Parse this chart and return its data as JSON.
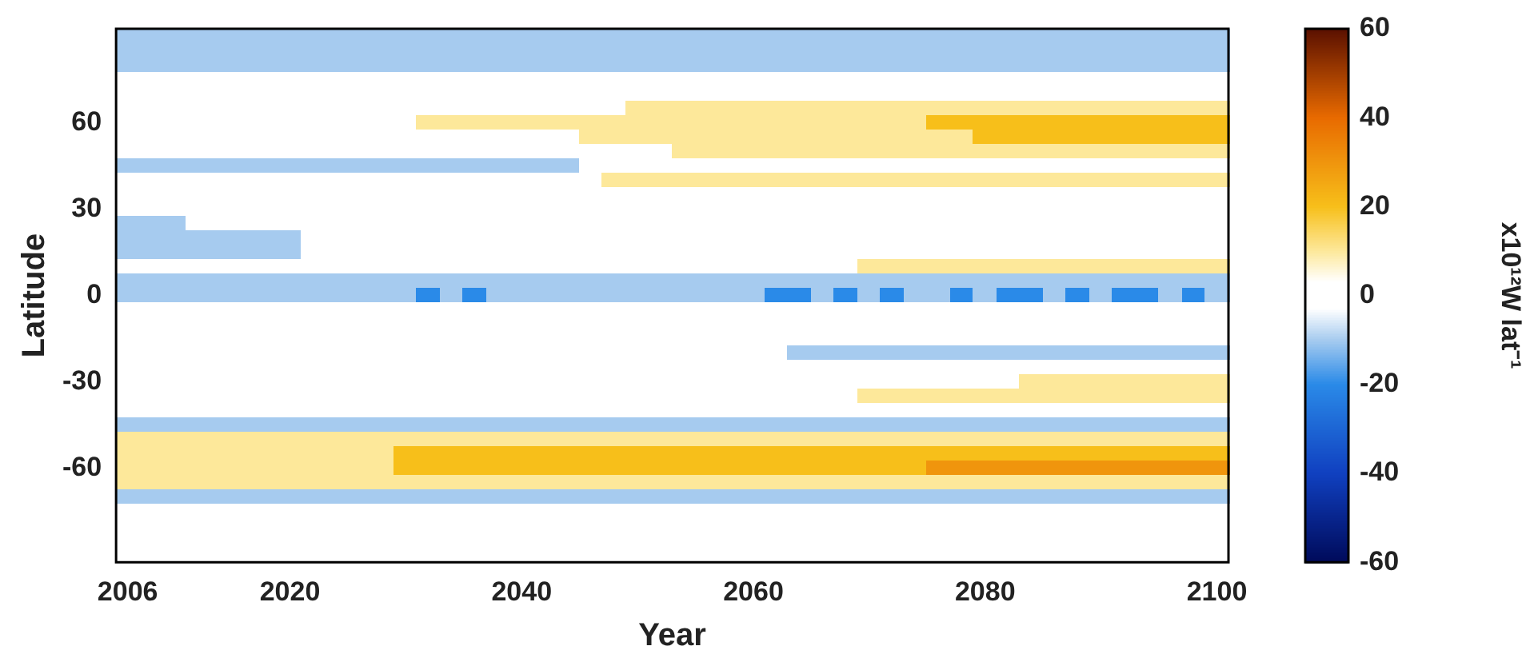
{
  "chart_data": {
    "type": "heatmap",
    "xlabel": "Year",
    "ylabel": "Latitude",
    "clabel": "x10¹²W lat⁻¹",
    "categories": [
      "2006",
      null,
      null,
      null,
      null,
      null,
      null,
      "2020",
      null,
      null,
      null,
      null,
      null,
      null,
      null,
      null,
      null,
      "2040",
      null,
      null,
      null,
      null,
      null,
      null,
      null,
      null,
      null,
      "2060",
      null,
      null,
      null,
      null,
      null,
      null,
      null,
      null,
      null,
      "2080",
      null,
      null,
      null,
      null,
      null,
      null,
      null,
      null,
      null,
      "2100"
    ],
    "y_categories": [
      null,
      null,
      null,
      null,
      null,
      null,
      "60",
      null,
      null,
      null,
      null,
      null,
      "30",
      null,
      null,
      null,
      null,
      null,
      "0",
      null,
      null,
      null,
      null,
      null,
      "-30",
      null,
      null,
      null,
      null,
      null,
      "-60",
      null,
      null,
      null,
      null,
      null,
      null
    ],
    "clim": [
      -60,
      60
    ],
    "cticks": [
      -60,
      -40,
      -20,
      0,
      20,
      40,
      60
    ],
    "cells": [
      [
        -10,
        -10,
        -10,
        -10,
        -10,
        -10,
        -10,
        -10,
        -10,
        -10,
        -10,
        -10,
        -10,
        -10,
        -10,
        -10,
        -10,
        -10,
        -10,
        -10,
        -10,
        -10,
        -10,
        -10,
        -10,
        -10,
        -10,
        -10,
        -10,
        -10,
        -10,
        -10,
        -10,
        -10,
        -10,
        -10,
        -10,
        -10,
        -10,
        -10,
        -10,
        -10,
        -10,
        -10,
        -10,
        -10,
        -10,
        -10
      ],
      [
        -10,
        -10,
        -10,
        -10,
        -10,
        -10,
        -10,
        -10,
        -10,
        -10,
        -10,
        -10,
        -10,
        -10,
        -10,
        -10,
        -10,
        -10,
        -10,
        -10,
        -10,
        -10,
        -10,
        -10,
        -10,
        -10,
        -10,
        -10,
        -10,
        -10,
        -10,
        -10,
        -10,
        -10,
        -10,
        -10,
        -10,
        -10,
        -10,
        -10,
        -10,
        -10,
        -10,
        -10,
        -10,
        -10,
        -10,
        -10
      ],
      [
        -10,
        -10,
        -10,
        -10,
        -10,
        -10,
        -10,
        -10,
        -10,
        -10,
        -10,
        -10,
        -10,
        -10,
        -10,
        -10,
        -10,
        -10,
        -10,
        -10,
        -10,
        -10,
        -10,
        -10,
        -10,
        -10,
        -10,
        -10,
        -10,
        -10,
        -10,
        -10,
        -10,
        -10,
        -10,
        -10,
        -10,
        -10,
        -10,
        -10,
        -10,
        -10,
        -10,
        -10,
        -10,
        -10,
        -10,
        -10
      ],
      [
        0,
        0,
        0,
        0,
        0,
        0,
        0,
        0,
        0,
        0,
        0,
        0,
        0,
        0,
        0,
        0,
        0,
        0,
        0,
        0,
        0,
        0,
        0,
        0,
        0,
        0,
        0,
        0,
        0,
        0,
        0,
        0,
        0,
        0,
        0,
        0,
        0,
        0,
        0,
        0,
        0,
        0,
        0,
        0,
        0,
        0,
        0,
        0
      ],
      [
        0,
        0,
        0,
        0,
        0,
        0,
        0,
        0,
        0,
        0,
        0,
        0,
        0,
        0,
        0,
        0,
        0,
        0,
        0,
        0,
        0,
        0,
        0,
        0,
        0,
        0,
        0,
        0,
        0,
        0,
        0,
        0,
        0,
        0,
        0,
        0,
        0,
        0,
        0,
        0,
        0,
        0,
        0,
        0,
        0,
        0,
        0,
        0
      ],
      [
        0,
        0,
        0,
        0,
        0,
        0,
        0,
        0,
        0,
        0,
        0,
        0,
        0,
        0,
        0,
        0,
        0,
        0,
        0,
        0,
        0,
        0,
        10,
        10,
        10,
        10,
        10,
        10,
        10,
        10,
        10,
        10,
        10,
        10,
        10,
        10,
        10,
        10,
        10,
        10,
        10,
        10,
        10,
        10,
        10,
        10,
        10,
        10
      ],
      [
        0,
        0,
        0,
        0,
        0,
        0,
        0,
        0,
        0,
        0,
        0,
        0,
        0,
        10,
        10,
        10,
        10,
        10,
        10,
        10,
        10,
        10,
        10,
        10,
        10,
        10,
        10,
        10,
        10,
        10,
        10,
        10,
        10,
        10,
        10,
        20,
        20,
        20,
        20,
        20,
        20,
        20,
        20,
        20,
        20,
        20,
        20,
        20
      ],
      [
        0,
        0,
        0,
        0,
        0,
        0,
        0,
        0,
        0,
        0,
        0,
        0,
        0,
        0,
        0,
        0,
        0,
        0,
        0,
        0,
        10,
        10,
        10,
        10,
        10,
        10,
        10,
        10,
        10,
        10,
        10,
        10,
        10,
        10,
        10,
        10,
        10,
        20,
        20,
        20,
        20,
        20,
        20,
        20,
        20,
        20,
        20,
        20
      ],
      [
        0,
        0,
        0,
        0,
        0,
        0,
        0,
        0,
        0,
        0,
        0,
        0,
        0,
        0,
        0,
        0,
        0,
        0,
        0,
        0,
        0,
        0,
        0,
        0,
        10,
        10,
        10,
        10,
        10,
        10,
        10,
        10,
        10,
        10,
        10,
        10,
        10,
        10,
        10,
        10,
        10,
        10,
        10,
        10,
        10,
        10,
        10,
        10
      ],
      [
        -10,
        -10,
        -10,
        -10,
        -10,
        -10,
        -10,
        -10,
        -10,
        -10,
        -10,
        -10,
        -10,
        -10,
        -10,
        -10,
        -10,
        -10,
        -10,
        -10,
        0,
        0,
        0,
        0,
        0,
        0,
        0,
        0,
        0,
        0,
        0,
        0,
        0,
        0,
        0,
        0,
        0,
        0,
        0,
        0,
        0,
        0,
        0,
        0,
        0,
        0,
        0,
        0
      ],
      [
        0,
        0,
        0,
        0,
        0,
        0,
        0,
        0,
        0,
        0,
        0,
        0,
        0,
        0,
        0,
        0,
        0,
        0,
        0,
        0,
        0,
        10,
        10,
        10,
        10,
        10,
        10,
        10,
        10,
        10,
        10,
        10,
        10,
        10,
        10,
        10,
        10,
        10,
        10,
        10,
        10,
        10,
        10,
        10,
        10,
        10,
        10,
        10
      ],
      [
        0,
        0,
        0,
        0,
        0,
        0,
        0,
        0,
        0,
        0,
        0,
        0,
        0,
        0,
        0,
        0,
        0,
        0,
        0,
        0,
        0,
        0,
        0,
        0,
        0,
        0,
        0,
        0,
        0,
        0,
        0,
        0,
        0,
        0,
        0,
        0,
        0,
        0,
        0,
        0,
        0,
        0,
        0,
        0,
        0,
        0,
        0,
        0
      ],
      [
        0,
        0,
        0,
        0,
        0,
        0,
        0,
        0,
        0,
        0,
        0,
        0,
        0,
        0,
        0,
        0,
        0,
        0,
        0,
        0,
        0,
        0,
        0,
        0,
        0,
        0,
        0,
        0,
        0,
        0,
        0,
        0,
        0,
        0,
        0,
        0,
        0,
        0,
        0,
        0,
        0,
        0,
        0,
        0,
        0,
        0,
        0,
        0
      ],
      [
        -10,
        -10,
        -10,
        0,
        0,
        0,
        0,
        0,
        0,
        0,
        0,
        0,
        0,
        0,
        0,
        0,
        0,
        0,
        0,
        0,
        0,
        0,
        0,
        0,
        0,
        0,
        0,
        0,
        0,
        0,
        0,
        0,
        0,
        0,
        0,
        0,
        0,
        0,
        0,
        0,
        0,
        0,
        0,
        0,
        0,
        0,
        0,
        0
      ],
      [
        -10,
        -10,
        -10,
        -10,
        -10,
        -10,
        -10,
        -10,
        0,
        0,
        0,
        0,
        0,
        0,
        0,
        0,
        0,
        0,
        0,
        0,
        0,
        0,
        0,
        0,
        0,
        0,
        0,
        0,
        0,
        0,
        0,
        0,
        0,
        0,
        0,
        0,
        0,
        0,
        0,
        0,
        0,
        0,
        0,
        0,
        0,
        0,
        0,
        0
      ],
      [
        -10,
        -10,
        -10,
        -10,
        -10,
        -10,
        -10,
        -10,
        0,
        0,
        0,
        0,
        0,
        0,
        0,
        0,
        0,
        0,
        0,
        0,
        0,
        0,
        0,
        0,
        0,
        0,
        0,
        0,
        0,
        0,
        0,
        0,
        0,
        0,
        0,
        0,
        0,
        0,
        0,
        0,
        0,
        0,
        0,
        0,
        0,
        0,
        0,
        0
      ],
      [
        0,
        0,
        0,
        0,
        0,
        0,
        0,
        0,
        0,
        0,
        0,
        0,
        0,
        0,
        0,
        0,
        0,
        0,
        0,
        0,
        0,
        0,
        0,
        0,
        0,
        0,
        0,
        0,
        0,
        0,
        0,
        0,
        10,
        10,
        10,
        10,
        10,
        10,
        10,
        10,
        10,
        10,
        10,
        10,
        10,
        10,
        10,
        10
      ],
      [
        -10,
        -10,
        -10,
        -10,
        -10,
        -10,
        -10,
        -10,
        -10,
        -10,
        -10,
        -10,
        -10,
        -10,
        -10,
        -10,
        -10,
        -10,
        -10,
        -10,
        -10,
        -10,
        -10,
        -10,
        -10,
        -10,
        -10,
        -10,
        -10,
        -10,
        -10,
        -10,
        -10,
        -10,
        -10,
        -10,
        -10,
        -10,
        -10,
        -10,
        -10,
        -10,
        -10,
        -10,
        -10,
        -10,
        -10,
        -10
      ],
      [
        -10,
        -10,
        -10,
        -10,
        -10,
        -10,
        -10,
        -10,
        -10,
        -10,
        -10,
        -10,
        -10,
        -20,
        -10,
        -20,
        -10,
        -10,
        -10,
        -10,
        -10,
        -10,
        -10,
        -10,
        -10,
        -10,
        -10,
        -10,
        -20,
        -20,
        -10,
        -20,
        -10,
        -20,
        -10,
        -10,
        -20,
        -10,
        -20,
        -20,
        -10,
        -20,
        -10,
        -20,
        -20,
        -10,
        -20,
        -10
      ],
      [
        0,
        0,
        0,
        0,
        0,
        0,
        0,
        0,
        0,
        0,
        0,
        0,
        0,
        0,
        0,
        0,
        0,
        0,
        0,
        0,
        0,
        0,
        0,
        0,
        0,
        0,
        0,
        0,
        0,
        0,
        0,
        0,
        0,
        0,
        0,
        0,
        0,
        0,
        0,
        0,
        0,
        0,
        0,
        0,
        0,
        0,
        0,
        0
      ],
      [
        0,
        0,
        0,
        0,
        0,
        0,
        0,
        0,
        0,
        0,
        0,
        0,
        0,
        0,
        0,
        0,
        0,
        0,
        0,
        0,
        0,
        0,
        0,
        0,
        0,
        0,
        0,
        0,
        0,
        0,
        0,
        0,
        0,
        0,
        0,
        0,
        0,
        0,
        0,
        0,
        0,
        0,
        0,
        0,
        0,
        0,
        0,
        0
      ],
      [
        0,
        0,
        0,
        0,
        0,
        0,
        0,
        0,
        0,
        0,
        0,
        0,
        0,
        0,
        0,
        0,
        0,
        0,
        0,
        0,
        0,
        0,
        0,
        0,
        0,
        0,
        0,
        0,
        0,
        0,
        0,
        0,
        0,
        0,
        0,
        0,
        0,
        0,
        0,
        0,
        0,
        0,
        0,
        0,
        0,
        0,
        0,
        0
      ],
      [
        0,
        0,
        0,
        0,
        0,
        0,
        0,
        0,
        0,
        0,
        0,
        0,
        0,
        0,
        0,
        0,
        0,
        0,
        0,
        0,
        0,
        0,
        0,
        0,
        0,
        0,
        0,
        0,
        0,
        -10,
        -10,
        -10,
        -10,
        -10,
        -10,
        -10,
        -10,
        -10,
        -10,
        -10,
        -10,
        -10,
        -10,
        -10,
        -10,
        -10,
        -10,
        -10
      ],
      [
        0,
        0,
        0,
        0,
        0,
        0,
        0,
        0,
        0,
        0,
        0,
        0,
        0,
        0,
        0,
        0,
        0,
        0,
        0,
        0,
        0,
        0,
        0,
        0,
        0,
        0,
        0,
        0,
        0,
        0,
        0,
        0,
        0,
        0,
        0,
        0,
        0,
        0,
        0,
        0,
        0,
        0,
        0,
        0,
        0,
        0,
        0,
        0
      ],
      [
        0,
        0,
        0,
        0,
        0,
        0,
        0,
        0,
        0,
        0,
        0,
        0,
        0,
        0,
        0,
        0,
        0,
        0,
        0,
        0,
        0,
        0,
        0,
        0,
        0,
        0,
        0,
        0,
        0,
        0,
        0,
        0,
        0,
        0,
        0,
        0,
        0,
        0,
        0,
        10,
        10,
        10,
        10,
        10,
        10,
        10,
        10,
        10
      ],
      [
        0,
        0,
        0,
        0,
        0,
        0,
        0,
        0,
        0,
        0,
        0,
        0,
        0,
        0,
        0,
        0,
        0,
        0,
        0,
        0,
        0,
        0,
        0,
        0,
        0,
        0,
        0,
        0,
        0,
        0,
        0,
        0,
        10,
        10,
        10,
        10,
        10,
        10,
        10,
        10,
        10,
        10,
        10,
        10,
        10,
        10,
        10,
        10
      ],
      [
        0,
        0,
        0,
        0,
        0,
        0,
        0,
        0,
        0,
        0,
        0,
        0,
        0,
        0,
        0,
        0,
        0,
        0,
        0,
        0,
        0,
        0,
        0,
        0,
        0,
        0,
        0,
        0,
        0,
        0,
        0,
        0,
        0,
        0,
        0,
        0,
        0,
        0,
        0,
        0,
        0,
        0,
        0,
        0,
        0,
        0,
        0,
        0
      ],
      [
        -10,
        -10,
        -10,
        -10,
        -10,
        -10,
        -10,
        -10,
        -10,
        -10,
        -10,
        -10,
        -10,
        -10,
        -10,
        -10,
        -10,
        -10,
        -10,
        -10,
        -10,
        -10,
        -10,
        -10,
        -10,
        -10,
        -10,
        -10,
        -10,
        -10,
        -10,
        -10,
        -10,
        -10,
        -10,
        -10,
        -10,
        -10,
        -10,
        -10,
        -10,
        -10,
        -10,
        -10,
        -10,
        -10,
        -10,
        -10
      ],
      [
        10,
        10,
        10,
        10,
        10,
        10,
        10,
        10,
        10,
        10,
        10,
        10,
        10,
        10,
        10,
        10,
        10,
        10,
        10,
        10,
        10,
        10,
        10,
        10,
        10,
        10,
        10,
        10,
        10,
        10,
        10,
        10,
        10,
        10,
        10,
        10,
        10,
        10,
        10,
        10,
        10,
        10,
        10,
        10,
        10,
        10,
        10,
        10
      ],
      [
        10,
        10,
        10,
        10,
        10,
        10,
        10,
        10,
        10,
        10,
        10,
        10,
        20,
        20,
        20,
        20,
        20,
        20,
        20,
        20,
        20,
        20,
        20,
        20,
        20,
        20,
        20,
        20,
        20,
        20,
        20,
        20,
        20,
        20,
        20,
        20,
        20,
        20,
        20,
        20,
        20,
        20,
        20,
        20,
        20,
        20,
        20,
        20
      ],
      [
        10,
        10,
        10,
        10,
        10,
        10,
        10,
        10,
        10,
        10,
        10,
        10,
        20,
        20,
        20,
        20,
        20,
        20,
        20,
        20,
        20,
        20,
        20,
        20,
        20,
        20,
        20,
        20,
        20,
        20,
        20,
        20,
        20,
        20,
        20,
        30,
        30,
        30,
        30,
        30,
        30,
        30,
        30,
        30,
        30,
        30,
        30,
        30
      ],
      [
        10,
        10,
        10,
        10,
        10,
        10,
        10,
        10,
        10,
        10,
        10,
        10,
        10,
        10,
        10,
        10,
        10,
        10,
        10,
        10,
        10,
        10,
        10,
        10,
        10,
        10,
        10,
        10,
        10,
        10,
        10,
        10,
        10,
        10,
        10,
        10,
        10,
        10,
        10,
        10,
        10,
        10,
        10,
        10,
        10,
        10,
        10,
        10
      ],
      [
        -10,
        -10,
        -10,
        -10,
        -10,
        -10,
        -10,
        -10,
        -10,
        -10,
        -10,
        -10,
        -10,
        -10,
        -10,
        -10,
        -10,
        -10,
        -10,
        -10,
        -10,
        -10,
        -10,
        -10,
        -10,
        -10,
        -10,
        -10,
        -10,
        -10,
        -10,
        -10,
        -10,
        -10,
        -10,
        -10,
        -10,
        -10,
        -10,
        -10,
        -10,
        -10,
        -10,
        -10,
        -10,
        -10,
        -10,
        -10
      ],
      [
        0,
        0,
        0,
        0,
        0,
        0,
        0,
        0,
        0,
        0,
        0,
        0,
        0,
        0,
        0,
        0,
        0,
        0,
        0,
        0,
        0,
        0,
        0,
        0,
        0,
        0,
        0,
        0,
        0,
        0,
        0,
        0,
        0,
        0,
        0,
        0,
        0,
        0,
        0,
        0,
        0,
        0,
        0,
        0,
        0,
        0,
        0,
        0
      ],
      [
        0,
        0,
        0,
        0,
        0,
        0,
        0,
        0,
        0,
        0,
        0,
        0,
        0,
        0,
        0,
        0,
        0,
        0,
        0,
        0,
        0,
        0,
        0,
        0,
        0,
        0,
        0,
        0,
        0,
        0,
        0,
        0,
        0,
        0,
        0,
        0,
        0,
        0,
        0,
        0,
        0,
        0,
        0,
        0,
        0,
        0,
        0,
        0
      ],
      [
        0,
        0,
        0,
        0,
        0,
        0,
        0,
        0,
        0,
        0,
        0,
        0,
        0,
        0,
        0,
        0,
        0,
        0,
        0,
        0,
        0,
        0,
        0,
        0,
        0,
        0,
        0,
        0,
        0,
        0,
        0,
        0,
        0,
        0,
        0,
        0,
        0,
        0,
        0,
        0,
        0,
        0,
        0,
        0,
        0,
        0,
        0,
        0
      ],
      [
        0,
        0,
        0,
        0,
        0,
        0,
        0,
        0,
        0,
        0,
        0,
        0,
        0,
        0,
        0,
        0,
        0,
        0,
        0,
        0,
        0,
        0,
        0,
        0,
        0,
        0,
        0,
        0,
        0,
        0,
        0,
        0,
        0,
        0,
        0,
        0,
        0,
        0,
        0,
        0,
        0,
        0,
        0,
        0,
        0,
        0,
        0,
        0
      ]
    ]
  }
}
